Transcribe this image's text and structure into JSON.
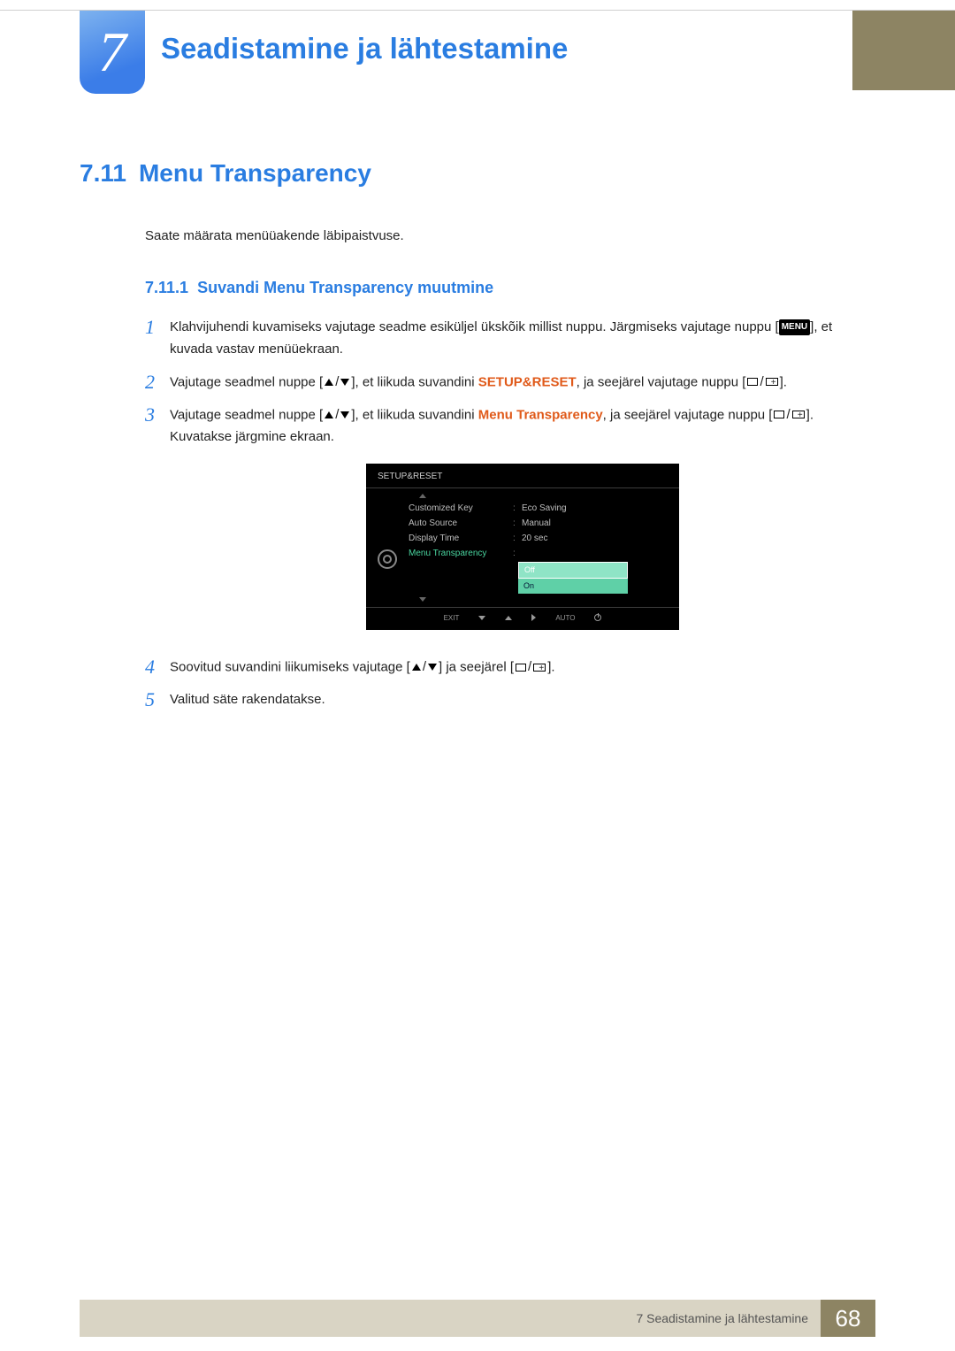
{
  "colors": {
    "accent_blue": "#2a7de1",
    "highlight_orange": "#e05a1a",
    "khaki_dark": "#8d8463",
    "khaki_light": "#d9d4c4",
    "osd_bg": "#000000",
    "osd_text": "#bdbdbd",
    "osd_selected": "#4ad6a0",
    "osd_dropdown_bg": "#5fd0a7"
  },
  "chapter": {
    "number": "7",
    "title": "Seadistamine ja lähtestamine"
  },
  "section": {
    "number": "7.11",
    "title": "Menu Transparency",
    "intro": "Saate määrata menüüakende läbipaistvuse."
  },
  "subsection": {
    "number": "7.11.1",
    "title": "Suvandi Menu Transparency muutmine"
  },
  "steps": [
    {
      "num": "1",
      "text_a": "Klahvijuhendi kuvamiseks vajutage seadme esiküljel ükskõik millist nuppu. Järgmiseks vajutage nuppu [",
      "menu_chip": "MENU",
      "text_b": "], et kuvada vastav menüüekraan."
    },
    {
      "num": "2",
      "text_a": "Vajutage seadmel nuppe [",
      "arrows": true,
      "text_b": "], et liikuda suvandini ",
      "highlight": "SETUP&RESET",
      "text_c": ", ja seejärel vajutage nuppu [",
      "rects": true,
      "text_d": "]."
    },
    {
      "num": "3",
      "text_a": "Vajutage seadmel nuppe [",
      "arrows": true,
      "text_b": "], et liikuda suvandini ",
      "highlight": "Menu Transparency",
      "text_c": ", ja seejärel vajutage nuppu [",
      "rects": true,
      "text_d": "]. Kuvatakse järgmine ekraan."
    },
    {
      "num": "4",
      "text_a": "Soovitud suvandini liikumiseks vajutage [",
      "arrows": true,
      "text_b": "] ja seejärel [",
      "rects": true,
      "text_c": "]."
    },
    {
      "num": "5",
      "text_a": "Valitud säte rakendatakse."
    }
  ],
  "osd": {
    "title": "SETUP&RESET",
    "rows": [
      {
        "label": "Customized Key",
        "value": "Eco Saving"
      },
      {
        "label": "Auto Source",
        "value": "Manual"
      },
      {
        "label": "Display Time",
        "value": "20 sec"
      },
      {
        "label": "Menu Transparency",
        "value": "Off",
        "selected": true
      }
    ],
    "dropdown": {
      "options": [
        "Off",
        "On"
      ],
      "selected": "Off"
    },
    "footer": {
      "exit": "EXIT",
      "auto": "AUTO"
    }
  },
  "footer": {
    "text": "7 Seadistamine ja lähtestamine",
    "page": "68"
  }
}
